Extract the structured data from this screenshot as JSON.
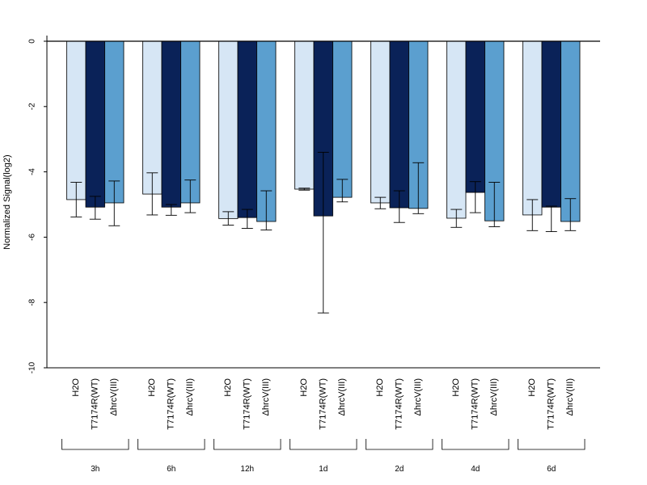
{
  "colors": {
    "H2O": "#d6e6f5",
    "T7174R(WT)": "#0a2258",
    "ΔhrcV(III)": "#5b9fcf",
    "axis": "#000000"
  },
  "chart_data": {
    "type": "bar",
    "ylabel": "Normalized Signal(log2)",
    "ylim": [
      -10,
      0.2
    ],
    "yticks": [
      0,
      -2,
      -4,
      -6,
      -8,
      -10
    ],
    "groups": [
      "3h",
      "6h",
      "12h",
      "1d",
      "2d",
      "4d",
      "6d"
    ],
    "series": [
      {
        "name": "H2O",
        "values": [
          -4.85,
          -4.68,
          -5.43,
          -4.53,
          -4.95,
          -5.42,
          -5.32
        ],
        "err_low": [
          -5.38,
          -5.32,
          -5.63,
          -4.56,
          -5.13,
          -5.7,
          -5.8
        ],
        "err_high": [
          -4.32,
          -4.03,
          -5.22,
          -4.5,
          -4.78,
          -5.15,
          -4.85
        ]
      },
      {
        "name": "T7174R(WT)",
        "values": [
          -5.08,
          -5.08,
          -5.4,
          -5.35,
          -5.1,
          -4.63,
          -5.08
        ],
        "err_low": [
          -5.45,
          -5.33,
          -5.73,
          -8.32,
          -5.55,
          -5.25,
          -5.83
        ],
        "err_high": [
          -4.75,
          -5.0,
          -5.15,
          -3.4,
          -4.58,
          -4.3,
          -5.05
        ]
      },
      {
        "name": "ΔhrcV(III)",
        "values": [
          -4.95,
          -4.95,
          -5.52,
          -4.78,
          -5.12,
          -5.5,
          -5.52
        ],
        "err_low": [
          -5.65,
          -5.25,
          -5.78,
          -4.92,
          -5.28,
          -5.68,
          -5.8
        ],
        "err_high": [
          -4.28,
          -4.25,
          -4.58,
          -4.23,
          -3.72,
          -4.32,
          -4.82
        ]
      }
    ]
  }
}
